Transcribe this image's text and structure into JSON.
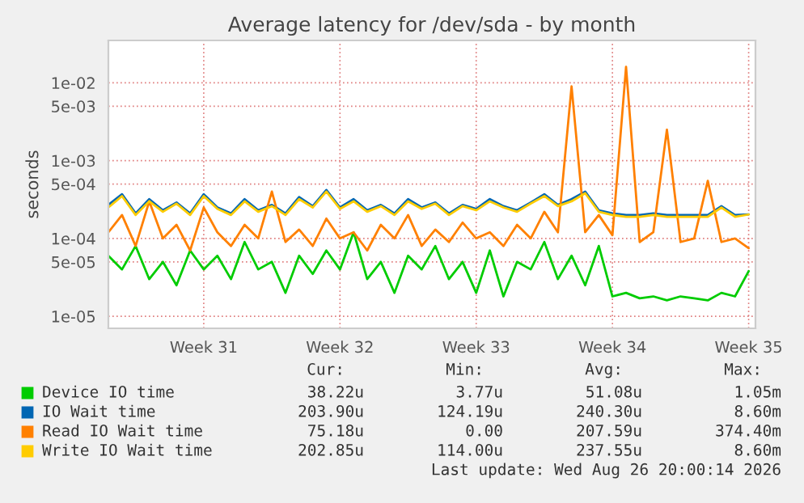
{
  "chart_data": {
    "type": "line",
    "title": "Average latency for /dev/sda - by month",
    "ylabel": "seconds",
    "x": [
      "2026-07-22T02:24",
      "2026-07-22T19:12",
      "2026-07-23T12:00",
      "2026-07-24T04:48",
      "2026-07-24T21:36",
      "2026-07-25T14:24",
      "2026-07-26T07:12",
      "2026-07-27T00:00",
      "2026-07-27T16:48",
      "2026-07-28T09:36",
      "2026-07-29T02:24",
      "2026-07-29T19:12",
      "2026-07-30T12:00",
      "2026-07-31T04:48",
      "2026-07-31T21:36",
      "2026-08-01T14:24",
      "2026-08-02T07:12",
      "2026-08-03T00:00",
      "2026-08-03T16:48",
      "2026-08-04T09:36",
      "2026-08-05T02:24",
      "2026-08-05T19:12",
      "2026-08-06T12:00",
      "2026-08-07T04:48",
      "2026-08-07T21:36",
      "2026-08-08T14:24",
      "2026-08-09T07:12",
      "2026-08-10T00:00",
      "2026-08-10T16:48",
      "2026-08-11T09:36",
      "2026-08-12T02:24",
      "2026-08-12T19:12",
      "2026-08-13T12:00",
      "2026-08-14T04:48",
      "2026-08-14T21:36",
      "2026-08-15T14:24",
      "2026-08-16T07:12",
      "2026-08-17T00:00",
      "2026-08-17T16:48",
      "2026-08-18T09:36",
      "2026-08-19T02:24",
      "2026-08-19T19:12",
      "2026-08-20T12:00",
      "2026-08-21T04:48",
      "2026-08-21T21:36",
      "2026-08-22T14:24",
      "2026-08-23T07:12",
      "2026-08-24T00:00"
    ],
    "series": [
      {
        "name": "Device IO time",
        "color": "#00cc00",
        "values": [
          6e-05,
          4e-05,
          8e-05,
          3e-05,
          5e-05,
          2.5e-05,
          7e-05,
          4e-05,
          6e-05,
          3e-05,
          9e-05,
          4e-05,
          5e-05,
          2e-05,
          6e-05,
          3.5e-05,
          7e-05,
          4e-05,
          0.00012,
          3e-05,
          5e-05,
          2e-05,
          6e-05,
          4e-05,
          8e-05,
          3e-05,
          5e-05,
          2e-05,
          7e-05,
          1.8e-05,
          5e-05,
          4e-05,
          9e-05,
          3e-05,
          6e-05,
          2.5e-05,
          8e-05,
          1.8e-05,
          2e-05,
          1.7e-05,
          1.8e-05,
          1.6e-05,
          1.8e-05,
          1.7e-05,
          1.6e-05,
          2e-05,
          1.8e-05,
          3.8e-05
        ]
      },
      {
        "name": "IO Wait time",
        "color": "#0066b3",
        "values": [
          0.00027,
          0.00037,
          0.00021,
          0.00032,
          0.00023,
          0.00029,
          0.00021,
          0.00037,
          0.00025,
          0.00021,
          0.00032,
          0.00023,
          0.00027,
          0.00021,
          0.00034,
          0.00026,
          0.00042,
          0.00025,
          0.00032,
          0.00023,
          0.00027,
          0.00021,
          0.00032,
          0.00025,
          0.00029,
          0.00021,
          0.00027,
          0.00024,
          0.00032,
          0.00026,
          0.00023,
          0.00029,
          0.00037,
          0.00027,
          0.00032,
          0.0004,
          0.00023,
          0.00021,
          0.0002,
          0.0002,
          0.00021,
          0.0002,
          0.0002,
          0.0002,
          0.0002,
          0.00026,
          0.0002,
          0.000204
        ]
      },
      {
        "name": "Read IO Wait time",
        "color": "#ff8000",
        "values": [
          0.00012,
          0.0002,
          8e-05,
          0.0003,
          0.0001,
          0.00015,
          7e-05,
          0.00025,
          0.00012,
          8e-05,
          0.00015,
          0.0001,
          0.0004,
          9e-05,
          0.00013,
          8e-05,
          0.00018,
          0.0001,
          0.00012,
          7e-05,
          0.00015,
          0.0001,
          0.0002,
          8e-05,
          0.00013,
          9e-05,
          0.00016,
          0.0001,
          0.00012,
          8e-05,
          0.00015,
          0.0001,
          0.00022,
          0.00012,
          0.009,
          0.00012,
          0.0002,
          0.00011,
          0.016,
          9e-05,
          0.00012,
          0.0025,
          9e-05,
          0.0001,
          0.00055,
          9e-05,
          0.0001,
          7.5e-05
        ]
      },
      {
        "name": "Write IO Wait time",
        "color": "#ffcc00",
        "values": [
          0.00025,
          0.00035,
          0.0002,
          0.0003,
          0.00022,
          0.00028,
          0.0002,
          0.00035,
          0.00024,
          0.0002,
          0.0003,
          0.00022,
          0.00026,
          0.0002,
          0.00032,
          0.00025,
          0.0004,
          0.00024,
          0.0003,
          0.00022,
          0.00026,
          0.0002,
          0.0003,
          0.00024,
          0.00028,
          0.0002,
          0.00026,
          0.00023,
          0.0003,
          0.00025,
          0.00022,
          0.00028,
          0.00035,
          0.00026,
          0.0003,
          0.00038,
          0.00022,
          0.0002,
          0.00019,
          0.00019,
          0.0002,
          0.00019,
          0.00019,
          0.00019,
          0.00019,
          0.00025,
          0.00019,
          0.000203
        ]
      }
    ],
    "log": true,
    "xlim": [
      "2026-07-22T02:24",
      "2026-08-24T08:24"
    ],
    "xticks": [
      {
        "value": "2026-07-27",
        "label": "Week 31"
      },
      {
        "value": "2026-08-03",
        "label": "Week 32"
      },
      {
        "value": "2026-08-10",
        "label": "Week 33"
      },
      {
        "value": "2026-08-17",
        "label": "Week 34"
      },
      {
        "value": "2026-08-24",
        "label": "Week 35"
      }
    ],
    "ylim": [
      7e-06,
      0.035
    ],
    "yticks": [
      {
        "value": 1e-05,
        "label": "1e-05"
      },
      {
        "value": 5e-05,
        "label": "5e-05"
      },
      {
        "value": 0.0001,
        "label": "1e-04"
      },
      {
        "value": 0.0005,
        "label": "5e-04"
      },
      {
        "value": 0.001,
        "label": "1e-03"
      },
      {
        "value": 0.005,
        "label": "5e-03"
      },
      {
        "value": 0.01,
        "label": "1e-02"
      }
    ],
    "grid": true,
    "legend": "bottom",
    "annotations": [
      "Cur:",
      "Min:",
      "Avg:",
      "Max:",
      "38.22u",
      "3.77u",
      "51.08u",
      "1.05m",
      "203.90u",
      "124.19u",
      "240.30u",
      "8.60m",
      "75.18u",
      "0.00",
      "207.59u",
      "374.40m",
      "202.85u",
      "114.00u",
      "237.55u",
      "8.60m",
      "Last update: Wed Aug 26 20:00:14 2026"
    ]
  }
}
